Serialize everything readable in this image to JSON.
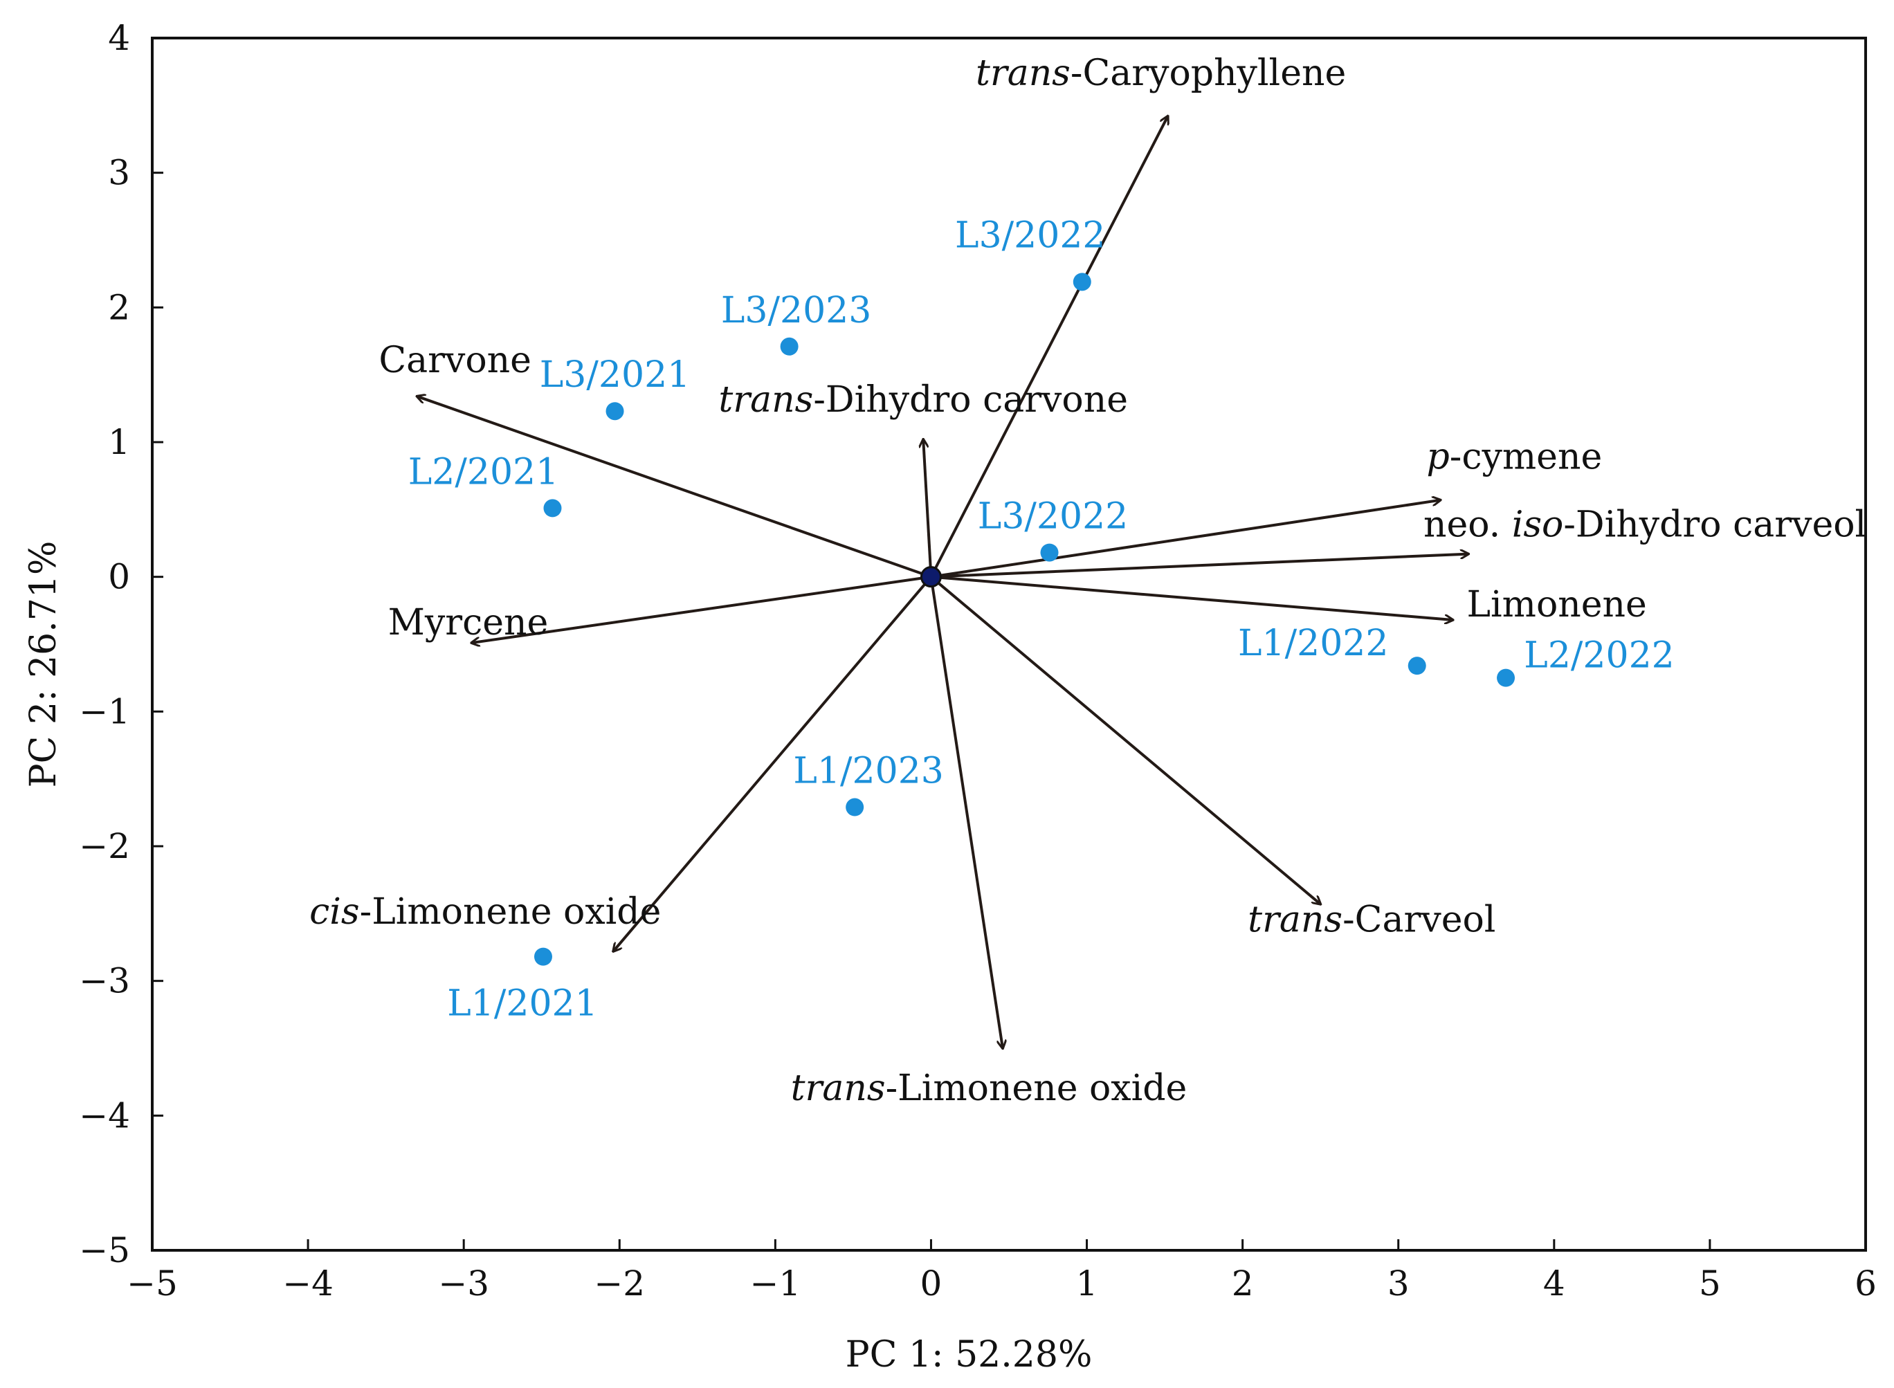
{
  "chart_data": {
    "type": "scatter",
    "xlabel": "PC 1: 52.28%",
    "ylabel": "PC 2: 26.71%",
    "xlim": [
      -5,
      6
    ],
    "ylim": [
      -5,
      4
    ],
    "xticks": [
      "−5",
      "−4",
      "−3",
      "−2",
      "−1",
      "0",
      "1",
      "2",
      "3",
      "4",
      "5",
      "6"
    ],
    "yticks": [
      "−5",
      "−4",
      "−3",
      "−2",
      "−1",
      "0",
      "1",
      "2",
      "3",
      "4"
    ],
    "grid": false,
    "point_color": "#1b8fd9",
    "vector_color": "#231a16",
    "points": [
      {
        "label": "L3/2022",
        "x": 0.97,
        "y": 2.19
      },
      {
        "label": "L3/2023",
        "x": -0.91,
        "y": 1.71
      },
      {
        "label": "L3/2021",
        "x": -2.03,
        "y": 1.23
      },
      {
        "label": "L2/2021",
        "x": -2.43,
        "y": 0.51
      },
      {
        "label": "L3/2022",
        "x": 0.76,
        "y": 0.18
      },
      {
        "label": "L1/2022",
        "x": 3.12,
        "y": -0.66
      },
      {
        "label": "L2/2022",
        "x": 3.69,
        "y": -0.75
      },
      {
        "label": "L1/2023",
        "x": -0.49,
        "y": -1.71
      },
      {
        "label": "L1/2021",
        "x": -2.49,
        "y": -2.82
      }
    ],
    "vectors": [
      {
        "name": "trans-Caryophyllene",
        "italic_prefix": "trans",
        "rest": "-Caryophyllene",
        "x": 1.52,
        "y": 3.42
      },
      {
        "name": "Carvone",
        "italic_prefix": "",
        "rest": "Carvone",
        "x": -3.3,
        "y": 1.34
      },
      {
        "name": "trans-Dihydro carvone",
        "italic_prefix": "trans",
        "rest": "-Dihydro carvone",
        "x": -0.05,
        "y": 1.02
      },
      {
        "name": "p-cymene",
        "italic_prefix": "p",
        "rest": "-cymene",
        "x": 3.27,
        "y": 0.57
      },
      {
        "name": "neo. iso-Dihydro carveol",
        "italic_prefix": "",
        "rest": "",
        "x": 3.45,
        "y": 0.17
      },
      {
        "name": "Limonene",
        "italic_prefix": "",
        "rest": "Limonene",
        "x": 3.35,
        "y": -0.32
      },
      {
        "name": "Myrcene",
        "italic_prefix": "",
        "rest": "Myrcene",
        "x": -2.95,
        "y": -0.49
      },
      {
        "name": "trans-Carveol",
        "italic_prefix": "trans",
        "rest": "-Carveol",
        "x": 2.5,
        "y": -2.43
      },
      {
        "name": "cis-Limonene oxide",
        "italic_prefix": "cis",
        "rest": "-Limonene oxide",
        "x": -2.04,
        "y": -2.78
      },
      {
        "name": "trans-Limonene oxide",
        "italic_prefix": "trans",
        "rest": "-Limonene oxide",
        "x": 0.46,
        "y": -3.5
      }
    ],
    "neo_label": {
      "prefix": "neo. ",
      "italic": "iso",
      "rest": "-Dihydro carveol"
    }
  }
}
